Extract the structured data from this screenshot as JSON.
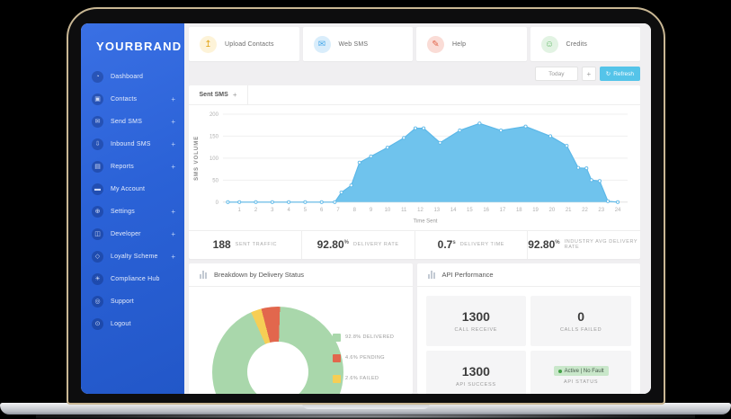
{
  "brand": {
    "name": "YOURBRAND",
    "sidebar_color": "#2b62d7"
  },
  "laptop": {
    "bezel_edge_color": "#c9b794"
  },
  "sidebar": {
    "items": [
      {
        "label": "Dashboard",
        "icon": "gauge-icon",
        "expandable": false
      },
      {
        "label": "Contacts",
        "icon": "contact-card-icon",
        "expandable": true
      },
      {
        "label": "Send SMS",
        "icon": "envelope-icon",
        "expandable": true
      },
      {
        "label": "Inbound SMS",
        "icon": "inbox-icon",
        "expandable": true
      },
      {
        "label": "Reports",
        "icon": "report-icon",
        "expandable": true
      },
      {
        "label": "My Account",
        "icon": "id-card-icon",
        "expandable": false
      },
      {
        "label": "Settings",
        "icon": "wrench-icon",
        "expandable": true
      },
      {
        "label": "Developer",
        "icon": "code-window-icon",
        "expandable": true
      },
      {
        "label": "Loyalty Scheme",
        "icon": "tag-icon",
        "expandable": true
      },
      {
        "label": "Compliance Hub",
        "icon": "bulb-icon",
        "expandable": false
      },
      {
        "label": "Support",
        "icon": "lifebuoy-icon",
        "expandable": false
      },
      {
        "label": "Logout",
        "icon": "power-icon",
        "expandable": false
      }
    ]
  },
  "topbar": {
    "cards": [
      {
        "label": "Upload Contacts",
        "icon": "upload-icon",
        "icon_color": "#e3a820",
        "icon_bg": "#fdf3d8"
      },
      {
        "label": "Web SMS",
        "icon": "web-sms-icon",
        "icon_color": "#4aa9e9",
        "icon_bg": "#d9edfb"
      },
      {
        "label": "Help",
        "icon": "pen-help-icon",
        "icon_color": "#e2674d",
        "icon_bg": "#fadcd6"
      },
      {
        "label": "Credits",
        "icon": "smiley-icon",
        "icon_color": "#67bb6d",
        "icon_bg": "#e2f3e3"
      }
    ]
  },
  "toolbar": {
    "period_label": "Today",
    "expand_label": "+",
    "refresh_label": "Refresh",
    "refresh_icon": "refresh-icon",
    "refresh_color": "#55c4e9"
  },
  "chart_card": {
    "tab_label": "Sent SMS",
    "add_tab_label": "+"
  },
  "chart_data": [
    {
      "id": "sms-volume",
      "type": "area",
      "title": "Sent SMS",
      "xlabel": "Time Sent",
      "ylabel": "SMS VOLUME",
      "xlim": [
        0,
        24.6
      ],
      "ylim": [
        0,
        200
      ],
      "yticks": [
        0,
        50,
        100,
        150,
        200
      ],
      "xticks": [
        1,
        2,
        3,
        4,
        5,
        6,
        7,
        8,
        9,
        10,
        11,
        12,
        13,
        14,
        15,
        16,
        17,
        18,
        19,
        20,
        21,
        22,
        23,
        24
      ],
      "grid": true,
      "fill_color": "#6fc3ed",
      "line_color": "#5db8e8",
      "points": [
        [
          0.3,
          0
        ],
        [
          1,
          0
        ],
        [
          2,
          0
        ],
        [
          3,
          0
        ],
        [
          4,
          0
        ],
        [
          5,
          0
        ],
        [
          6,
          0
        ],
        [
          6.8,
          0
        ],
        [
          7.2,
          22
        ],
        [
          7.8,
          38
        ],
        [
          8.3,
          90
        ],
        [
          9,
          104
        ],
        [
          10,
          124
        ],
        [
          11,
          146
        ],
        [
          11.7,
          168
        ],
        [
          12.2,
          168
        ],
        [
          13.2,
          135
        ],
        [
          14.4,
          163
        ],
        [
          15.6,
          179
        ],
        [
          16.9,
          163
        ],
        [
          18.4,
          172
        ],
        [
          19.9,
          150
        ],
        [
          20.9,
          128
        ],
        [
          21.6,
          78
        ],
        [
          22.1,
          77
        ],
        [
          22.4,
          50
        ],
        [
          22.9,
          48
        ],
        [
          23.4,
          2
        ],
        [
          24,
          0
        ]
      ]
    },
    {
      "id": "delivery-status",
      "type": "donut",
      "title": "Breakdown by Delivery Status",
      "start_angle_deg": 336,
      "slices": [
        {
          "name": "DELIVERED",
          "value": 92.8,
          "color": "#a9d7ab",
          "label": "92.8% DELIVERED"
        },
        {
          "name": "PENDING",
          "value": 4.6,
          "color": "#e2674d",
          "label": "4.6% PENDING"
        },
        {
          "name": "FAILED",
          "value": 2.6,
          "color": "#f6ce55",
          "label": "2.6% FAILED"
        }
      ],
      "legend_position": "right"
    }
  ],
  "stats": [
    {
      "value": "188",
      "suffix": "",
      "label": "SENT TRAFFIC"
    },
    {
      "value": "92.80",
      "suffix": "%",
      "label": "DELIVERY RATE"
    },
    {
      "value": "0.7",
      "suffix": "s",
      "label": "DELIVERY TIME"
    },
    {
      "value": "92.80",
      "suffix": "%",
      "label": "INDUSTRY AVG DELIVERY RATE"
    }
  ],
  "breakdown_card": {
    "title": "Breakdown by Delivery Status",
    "icon": "bar-chart-icon"
  },
  "api_card": {
    "title": "API Performance",
    "icon": "bar-chart-icon",
    "tiles": [
      {
        "value": "1300",
        "label": "CALL RECEIVE"
      },
      {
        "value": "0",
        "label": "CALLS FAILED"
      },
      {
        "value": "1300",
        "label": "API SUCCESS"
      },
      {
        "badge": "Active | No Fault",
        "label": "API STATUS",
        "badge_color": "#c9e7ca",
        "dot_color": "#43a047"
      }
    ]
  }
}
